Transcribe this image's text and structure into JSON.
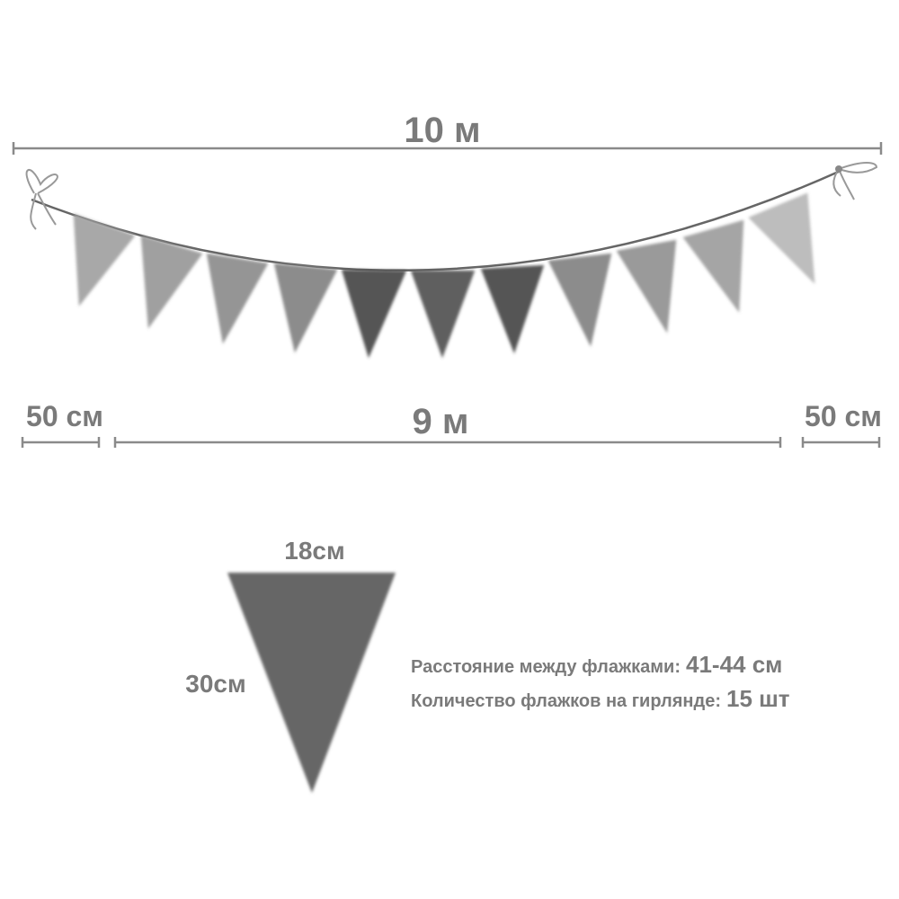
{
  "top_length": "10 м",
  "left_margin": "50 см",
  "middle_length": "9 м",
  "right_margin": "50 см",
  "flag_width": "18см",
  "flag_height": "30см",
  "specs": [
    {
      "label": "Расстояние между флажками:",
      "value": "41-44 см"
    },
    {
      "label": "Количество флажков на гирлянде:",
      "value": "15 шт"
    }
  ]
}
